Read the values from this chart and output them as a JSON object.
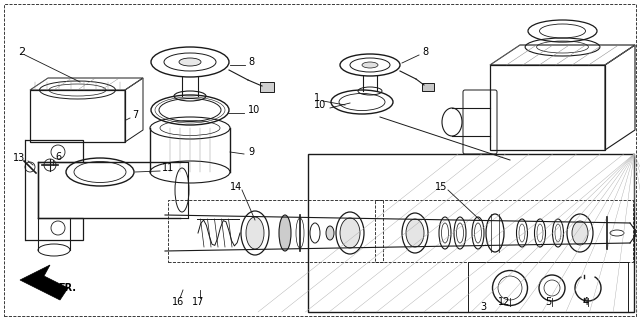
{
  "background_color": "#ffffff",
  "line_color": "#1a1a1a",
  "fig_w": 6.4,
  "fig_h": 3.2,
  "dpi": 100
}
